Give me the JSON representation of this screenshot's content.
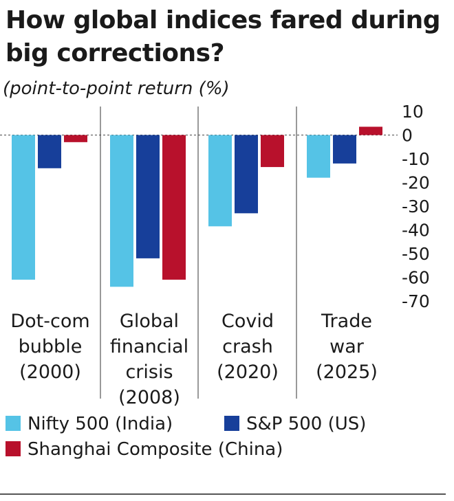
{
  "title": "How global indices fared during big corrections?",
  "subtitle": "(point-to-point return (%)",
  "colors": {
    "nifty": "#55c3e6",
    "sp500": "#173f9a",
    "shanghai": "#b8112c"
  },
  "chart_data": {
    "type": "bar",
    "categories": [
      [
        "Dot-com",
        "bubble",
        "(2000)"
      ],
      [
        "Global",
        "financial",
        "crisis",
        "(2008)"
      ],
      [
        "Covid",
        "crash",
        "(2020)"
      ],
      [
        "Trade",
        "war",
        "(2025)"
      ]
    ],
    "series": [
      {
        "name": "Nifty 500 (India)",
        "color": "#55c3e6",
        "values": [
          -61,
          -64,
          -38.5,
          -18
        ]
      },
      {
        "name": "S&P 500 (US)",
        "color": "#173f9a",
        "values": [
          -14,
          -52,
          -33,
          -12
        ]
      },
      {
        "name": "Shanghai Composite (China)",
        "color": "#b8112c",
        "values": [
          -3,
          -61,
          -13.5,
          3.5
        ]
      }
    ],
    "ylim": [
      -70,
      10
    ],
    "yticks": [
      10,
      0,
      -10,
      -20,
      -30,
      -40,
      -50,
      -60,
      -70
    ],
    "legend_position": "bottom"
  }
}
